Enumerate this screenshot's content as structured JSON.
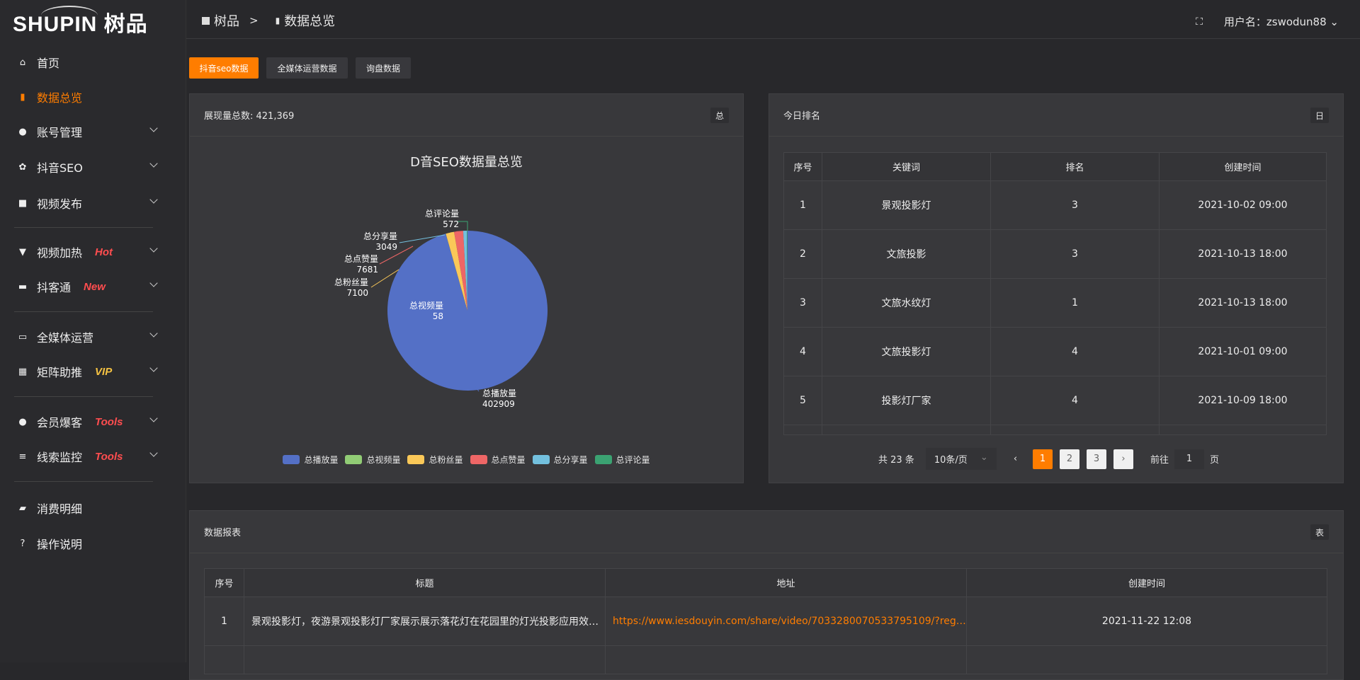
{
  "brand": {
    "logo_text": "SHUPIN 树品"
  },
  "header": {
    "breadcrumb": [
      "树品",
      ">",
      "数据总览"
    ],
    "user_label": "用户名：zswodun88"
  },
  "sidebar": {
    "items": [
      {
        "label": "首页",
        "icon": "home-icon"
      },
      {
        "label": "数据总览",
        "icon": "bar-chart-icon",
        "active": true
      },
      {
        "label": "账号管理",
        "icon": "user-icon",
        "expand": true
      },
      {
        "label": "抖音SEO",
        "icon": "gear-icon",
        "expand": true
      },
      {
        "label": "视频发布",
        "icon": "camera-icon",
        "expand": true
      },
      {
        "label": "视频加热",
        "icon": "brush-icon",
        "badge": "Hot",
        "expand": true
      },
      {
        "label": "抖客通",
        "icon": "chat-icon",
        "badge": "New",
        "expand": true
      },
      {
        "label": "全媒体运营",
        "icon": "monitor-icon",
        "expand": true
      },
      {
        "label": "矩阵助推",
        "icon": "grid-icon",
        "badge": "VIP",
        "expand": true
      },
      {
        "label": "会员爆客",
        "icon": "user-icon",
        "badge": "Tools",
        "expand": true
      },
      {
        "label": "线索监控",
        "icon": "sliders-icon",
        "badge": "Tools",
        "expand": true
      },
      {
        "label": "消费明细",
        "icon": "wallet-icon"
      },
      {
        "label": "操作说明",
        "icon": "help-icon"
      }
    ]
  },
  "tabs": [
    "抖音seo数据",
    "全媒体运营数据",
    "询盘数据"
  ],
  "overview": {
    "header": "展现量总数: 421,369",
    "button": "总",
    "chart_data": {
      "type": "pie",
      "title": "D音SEO数据量总览",
      "legend_position": "bottom",
      "slices": [
        {
          "name": "总播放量",
          "value": 402909,
          "color": "#5470c6"
        },
        {
          "name": "总视频量",
          "value": 58,
          "color": "#91cc75"
        },
        {
          "name": "总粉丝量",
          "value": 7100,
          "color": "#fac858"
        },
        {
          "name": "总点赞量",
          "value": 7681,
          "color": "#ee6666"
        },
        {
          "name": "总分享量",
          "value": 3049,
          "color": "#73c0de"
        },
        {
          "name": "总评论量",
          "value": 572,
          "color": "#3ba272"
        }
      ]
    }
  },
  "ranking": {
    "header": "今日排名",
    "button": "日",
    "columns": [
      "序号",
      "关键词",
      "排名",
      "创建时间"
    ],
    "rows": [
      [
        "1",
        "景观投影灯",
        "3",
        "2021-10-02 09:00"
      ],
      [
        "2",
        "文旅投影",
        "3",
        "2021-10-13 18:00"
      ],
      [
        "3",
        "文旅水纹灯",
        "1",
        "2021-10-13 18:00"
      ],
      [
        "4",
        "文旅投影灯",
        "4",
        "2021-10-01 09:00"
      ],
      [
        "5",
        "投影灯厂家",
        "4",
        "2021-10-09 18:00"
      ]
    ],
    "pagination": {
      "total": "共 23 条",
      "page_size": "10条/页",
      "pages": [
        "1",
        "2",
        "3"
      ],
      "current": 1,
      "goto_label": "前往",
      "goto_value": "1",
      "page_suffix": "页"
    }
  },
  "report": {
    "header": "数据报表",
    "button": "表",
    "columns": [
      "序号",
      "标题",
      "地址",
      "创建时间"
    ],
    "rows": [
      [
        "1",
        "景观投影灯，夜游景观投影灯厂家展示展示落花灯在花园里的灯光投影应用效果 #",
        "https://www.iesdouyin.com/share/video/7033280070533795109/?regio...",
        "2021-11-22 12:08"
      ]
    ]
  },
  "colors": {
    "accent": "#ff7d00",
    "badge_red": "#ff4d4f",
    "badge_vip": "#f5c242",
    "link": "#ff7d00"
  }
}
